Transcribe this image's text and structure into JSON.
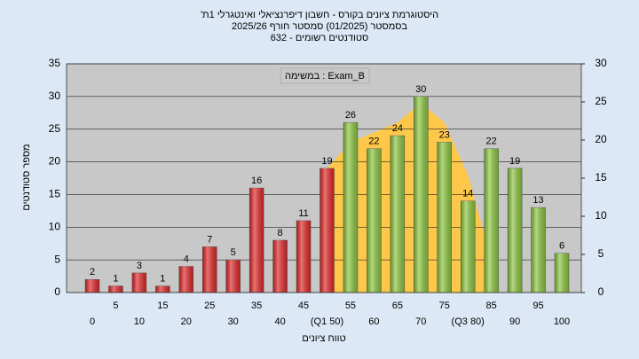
{
  "chart_data": {
    "type": "bar",
    "title": [
      "היסטוגרמת ציונים בקורס - חשבון דיפרנציאלי ואינטגרלי 1ת'",
      "בסמסטר (01/2025) סמסטר חורף 2025/26",
      "סטודנטים רשומים - 632"
    ],
    "annotation": "במשימה : Exam_B",
    "y_label": "מספר סטודנטים",
    "x_label": "טווח ציונים",
    "categories": [
      "0",
      "5",
      "10",
      "15",
      "20",
      "25",
      "30",
      "35",
      "40",
      "45",
      "(Q1 50)",
      "55",
      "60",
      "65",
      "70",
      "75",
      "(Q3 80)",
      "85",
      "90",
      "95",
      "100"
    ],
    "values": [
      2,
      1,
      3,
      1,
      4,
      7,
      5,
      16,
      8,
      11,
      19,
      26,
      22,
      24,
      30,
      23,
      14,
      22,
      19,
      13,
      6
    ],
    "colors": [
      "#e02828",
      "#e02828",
      "#e02828",
      "#e02828",
      "#e02828",
      "#e02828",
      "#e02828",
      "#e02828",
      "#e02828",
      "#e02828",
      "#e02828",
      "#8cc63e",
      "#8cc63e",
      "#8cc63e",
      "#8cc63e",
      "#8cc63e",
      "#8cc63e",
      "#8cc63e",
      "#8cc63e",
      "#8cc63e",
      "#8cc63e"
    ],
    "ylim": [
      0,
      35
    ],
    "yticks": [
      0,
      5,
      10,
      15,
      20,
      25,
      30,
      35
    ],
    "y2lim": [
      0,
      30
    ],
    "y2ticks": [
      0,
      5,
      10,
      15,
      20,
      25,
      30
    ],
    "grid": true,
    "curve": {
      "axis": "y2",
      "color": "#ffc84a",
      "x": [
        50,
        55,
        60,
        65,
        70,
        75,
        80,
        85
      ],
      "values": [
        16.3,
        19.7,
        21,
        22.3,
        24.9,
        22.3,
        15.4,
        4.3
      ]
    }
  }
}
